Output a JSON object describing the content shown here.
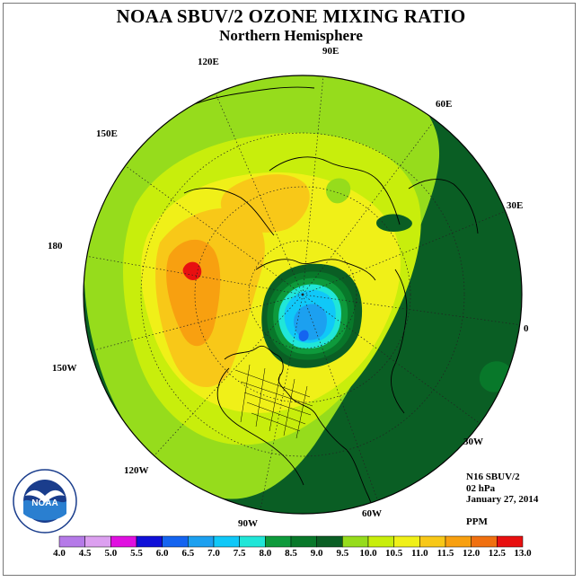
{
  "header": {
    "title": "NOAA SBUV/2 OZONE MIXING RATIO",
    "subtitle": "Northern Hemisphere"
  },
  "map": {
    "projection": "north-polar-stereographic",
    "longitude_labels": [
      "90E",
      "60E",
      "30E",
      "0",
      "30W",
      "60W",
      "90W",
      "120W",
      "150W",
      "180",
      "150E",
      "120E"
    ]
  },
  "info": {
    "instrument": "N16 SBUV/2",
    "level": "02 hPa",
    "date": "January 27, 2014",
    "units": "PPM"
  },
  "colorbar": {
    "ticks": [
      "4.0",
      "4.5",
      "5.0",
      "5.5",
      "6.0",
      "6.5",
      "7.0",
      "7.5",
      "8.0",
      "8.5",
      "9.0",
      "9.5",
      "10.0",
      "10.5",
      "11.0",
      "11.5",
      "12.0",
      "12.5",
      "13.0"
    ],
    "colors": [
      "#b57ae8",
      "#dca0f0",
      "#e010e0",
      "#1010d8",
      "#1464f0",
      "#1ca0f0",
      "#10c8f8",
      "#20e6d8",
      "#0e9a3c",
      "#08782a",
      "#0a5e24",
      "#96dc1c",
      "#c8ee0c",
      "#f0f018",
      "#f8c818",
      "#f8a010",
      "#f07010",
      "#e81010",
      "#8c5a3c"
    ]
  },
  "logo": {
    "text": "NOAA",
    "ring_text": "NATIONAL OCEANIC AND ATMOSPHERIC ADMINISTRATION · U.S. DEPARTMENT OF COMMERCE"
  }
}
